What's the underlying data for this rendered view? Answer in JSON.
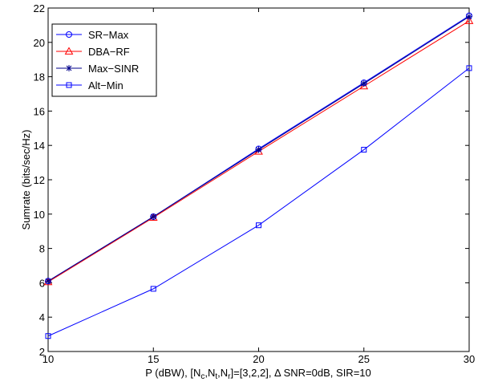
{
  "chart_data": {
    "type": "line",
    "x": [
      10,
      15,
      20,
      25,
      30
    ],
    "xlim": [
      10,
      30
    ],
    "ylim": [
      2,
      22
    ],
    "xticks": [
      "10",
      "15",
      "20",
      "25",
      "30"
    ],
    "yticks": [
      "2",
      "4",
      "6",
      "8",
      "10",
      "12",
      "14",
      "16",
      "18",
      "20",
      "22"
    ],
    "ylabel": "Sumrate (bits/sec/Hz)",
    "xlabel": {
      "p1": "P (dBW), [N",
      "s1": "c",
      "p2": ",N",
      "s2": "t",
      "p3": ",N",
      "s3": "r",
      "p4": "]=[3,2,2], Δ SNR=0dB, SIR=10"
    },
    "grid": false,
    "legend_position": "top-left",
    "series": [
      {
        "name": "SR−Max",
        "color": "#0000ff",
        "marker": "circle",
        "values": [
          6.1,
          9.85,
          13.8,
          17.65,
          21.55
        ]
      },
      {
        "name": "DBA−RF",
        "color": "#ff0000",
        "marker": "triangle",
        "values": [
          6.05,
          9.8,
          13.65,
          17.45,
          21.25
        ]
      },
      {
        "name": "Max−SINR",
        "color": "#00008b",
        "marker": "star",
        "values": [
          6.1,
          9.85,
          13.75,
          17.6,
          21.5
        ]
      },
      {
        "name": "Alt−Min",
        "color": "#0000ff",
        "marker": "square",
        "values": [
          2.9,
          5.65,
          9.35,
          13.75,
          18.5
        ]
      }
    ]
  }
}
